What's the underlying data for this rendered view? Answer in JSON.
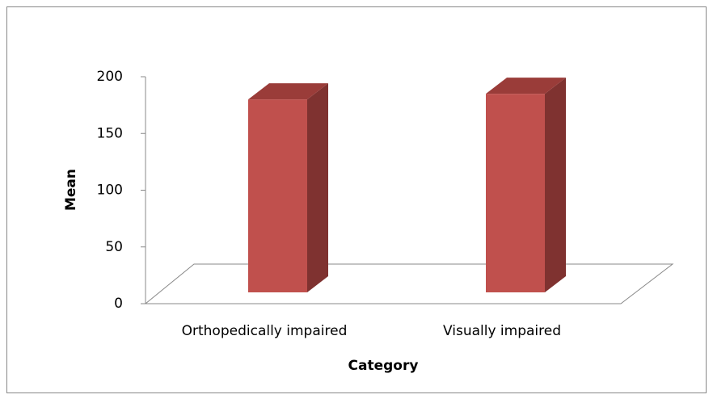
{
  "chart_data": {
    "type": "bar3d",
    "categories": [
      "Orthopedically impaired",
      "Visually impaired"
    ],
    "values": [
      170,
      175
    ],
    "color": "#c0504d",
    "xlabel": "Category",
    "ylabel": "Mean",
    "ylim": [
      0,
      200
    ],
    "yticks": [
      0,
      50,
      100,
      150,
      200
    ]
  }
}
